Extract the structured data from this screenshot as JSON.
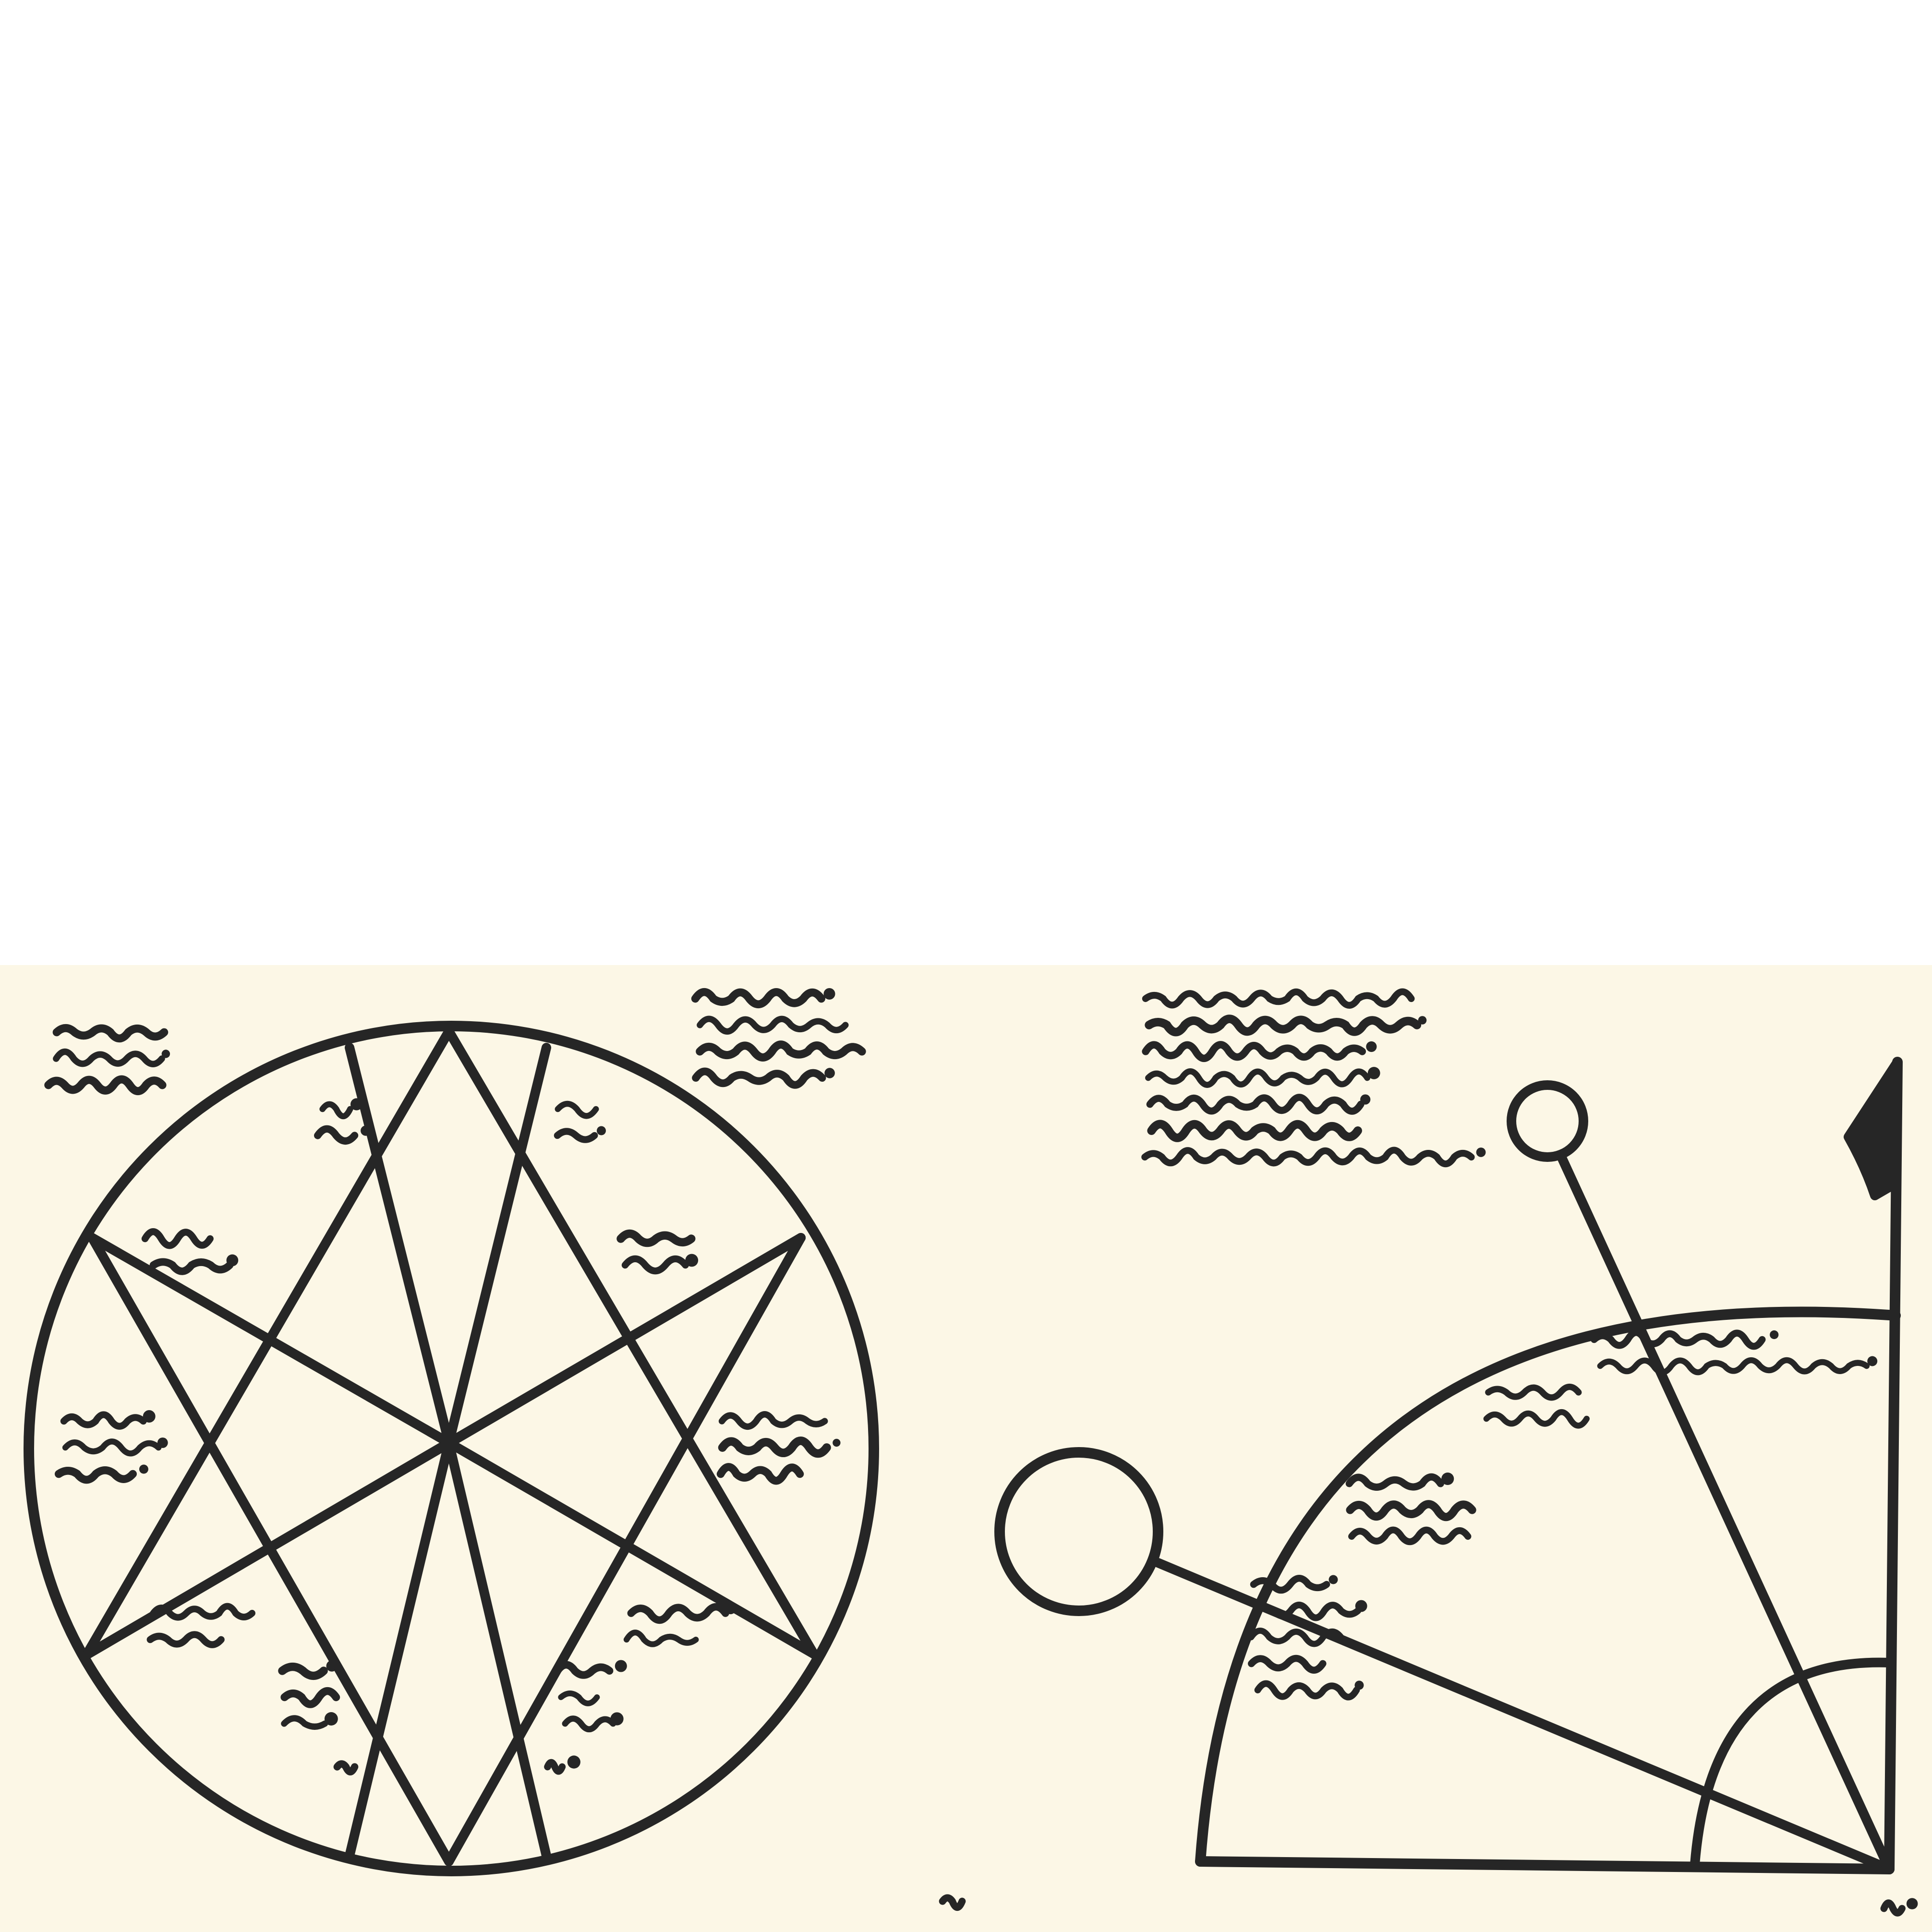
{
  "colors": {
    "page_background": "#ffffff",
    "panel_background": "#fcf7e6",
    "ink": "#262626"
  },
  "figure_left": {
    "name": "heptagram-seal",
    "outer_circle": true,
    "star_points": 7,
    "glyph_clusters": 17,
    "labels": []
  },
  "figure_right": {
    "name": "quadrant-with-pendulums",
    "arcs": 2,
    "pendulums": 2,
    "flag": "marker-flag-icon",
    "labels": []
  },
  "text": []
}
